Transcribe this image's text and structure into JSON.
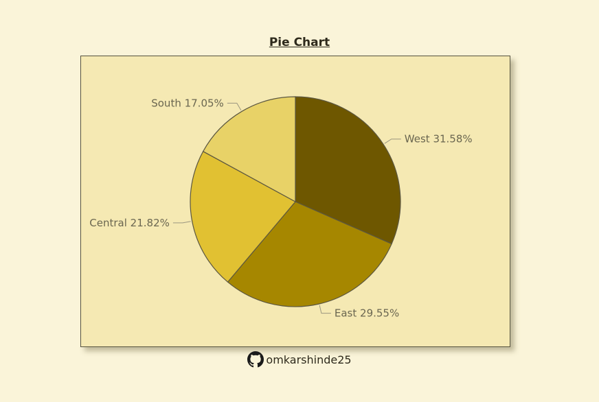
{
  "chart_data": {
    "type": "pie",
    "title": "Pie Chart",
    "categories": [
      "West",
      "East",
      "Central",
      "South"
    ],
    "values": [
      31.58,
      29.55,
      21.82,
      17.05
    ],
    "labels": [
      "West 31.58%",
      "East 29.55%",
      "Central 21.82%",
      "South 17.05%"
    ],
    "colors": [
      "#6e5700",
      "#a68700",
      "#e1c132",
      "#e8d267"
    ],
    "start_angle": "12 o'clock",
    "direction": "clockwise"
  },
  "footer": {
    "icon": "github-icon",
    "handle": "omkarshinde25"
  }
}
